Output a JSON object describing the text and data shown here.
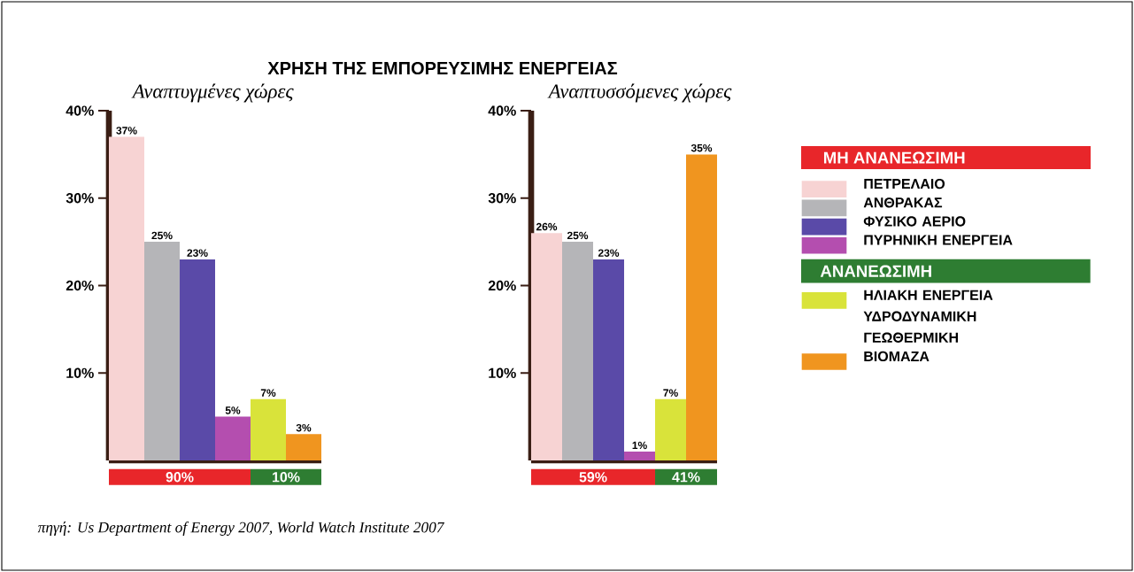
{
  "chart_data": [
    {
      "type": "bar",
      "title": "ΧΡΗΣΗ ΤΗΣ ΕΜΠΟΡΕΥΣΙΜΗΣ ΕΝΕΡΓΕΙΑΣ",
      "subtitle": "Αναπτυγμένες χώρες",
      "categories": [
        null,
        null,
        null,
        null,
        null,
        null
      ],
      "series": [
        {
          "color": "#f7d3d3",
          "values": [
            37,
            null,
            null,
            null,
            null,
            null
          ],
          "value_labels": [
            "37%",
            null,
            null,
            null,
            null,
            null
          ]
        },
        {
          "color": "#b5b5b8",
          "values": [
            null,
            25,
            null,
            null,
            null,
            null
          ],
          "value_labels": [
            null,
            "25%",
            null,
            null,
            null,
            null
          ]
        },
        {
          "color": "#5a4aa8",
          "values": [
            null,
            null,
            23,
            null,
            null,
            null
          ],
          "value_labels": [
            null,
            null,
            "23%",
            null,
            null,
            null
          ]
        },
        {
          "color": "#b44eaf",
          "values": [
            null,
            null,
            null,
            5,
            null,
            null
          ],
          "value_labels": [
            null,
            null,
            null,
            "5%",
            null,
            null
          ]
        },
        {
          "color": "#d9e33a",
          "values": [
            null,
            null,
            null,
            null,
            7,
            null
          ],
          "value_labels": [
            null,
            null,
            null,
            null,
            "7%",
            null
          ]
        },
        {
          "color": "#f0951f",
          "values": [
            null,
            null,
            null,
            null,
            null,
            3
          ],
          "value_labels": [
            null,
            null,
            null,
            null,
            null,
            "3%"
          ]
        }
      ],
      "ylim": [
        0,
        40
      ],
      "yticks": [
        {
          "value": 10,
          "label": "10%"
        },
        {
          "value": 20,
          "label": "20%"
        },
        {
          "value": 30,
          "label": "30%"
        },
        {
          "value": 40,
          "label": "40%"
        }
      ],
      "annotations": [
        "90%",
        "10%",
        "πηγή: Us Department of Energy 2007, World Watch Institute 2007"
      ]
    },
    {
      "type": "bar",
      "subtitle": "Αναπτυσσόμενες χώρες",
      "categories": [
        null,
        null,
        null,
        null,
        null,
        null
      ],
      "series": [
        {
          "name": "ΠΕΤΡΕΛΑΙΟ",
          "color": "#f7d3d3",
          "values": [
            26,
            null,
            null,
            null,
            null,
            null
          ],
          "value_labels": [
            "26%",
            null,
            null,
            null,
            null,
            null
          ]
        },
        {
          "name": "ΑΝΘΡΑΚΑΣ",
          "color": "#b5b5b8",
          "values": [
            null,
            25,
            null,
            null,
            null,
            null
          ],
          "value_labels": [
            null,
            "25%",
            null,
            null,
            null,
            null
          ]
        },
        {
          "name": "ΦΥΣΙΚΟ ΑΕΡΙΟ",
          "color": "#5a4aa8",
          "values": [
            null,
            null,
            23,
            null,
            null,
            null
          ],
          "value_labels": [
            null,
            null,
            "23%",
            null,
            null,
            null
          ]
        },
        {
          "name": "ΠΥΡΗΝΙΚΗ ΕΝΕΡΓΕΙΑ",
          "color": "#b44eaf",
          "values": [
            null,
            null,
            null,
            1,
            null,
            null
          ],
          "value_labels": [
            null,
            null,
            null,
            "1%",
            null,
            null
          ]
        },
        {
          "name": "ΗΛΙΑΚΗ ΕΝΕΡΓΕΙΑ ΥΔΡΟΔΥΝΑΜΙΚΗ ΓΕΩΘΕΡΜΙΚΗ",
          "color": "#d9e33a",
          "values": [
            null,
            null,
            null,
            null,
            7,
            null
          ],
          "value_labels": [
            null,
            null,
            null,
            null,
            "7%",
            null
          ]
        },
        {
          "name": "ΒΙΟΜΑΖΑ",
          "color": "#f0951f",
          "values": [
            null,
            null,
            null,
            null,
            null,
            35
          ],
          "value_labels": [
            null,
            null,
            null,
            null,
            null,
            "35%"
          ]
        }
      ],
      "ylim": [
        0,
        40
      ],
      "yticks": [
        {
          "value": 10,
          "label": "10%"
        },
        {
          "value": 20,
          "label": "20%"
        },
        {
          "value": 30,
          "label": "30%"
        },
        {
          "value": 40,
          "label": "40%"
        }
      ],
      "legend": "right",
      "annotations": [
        "59%",
        "41%",
        "ΜΗ ΑΝΑΝΕΩΣΙΜΗ",
        "ΑΝΑΝΕΩΣΙΜΗ"
      ]
    }
  ]
}
